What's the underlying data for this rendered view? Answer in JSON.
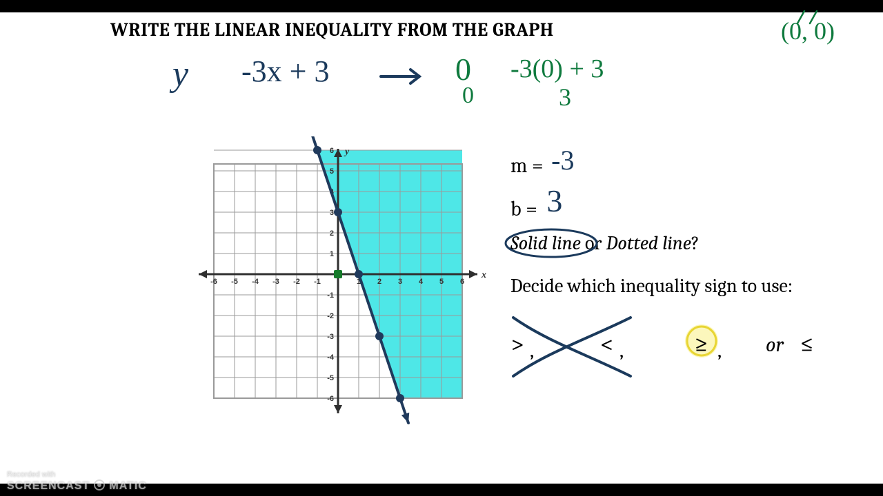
{
  "title": "WRITE THE LINEAR INEQUALITY FROM THE GRAPH",
  "test_point": "(0, 0)",
  "equation": {
    "lhs": "y",
    "rhs": "-3x + 3",
    "sub_x": "0",
    "sub_below": "0",
    "sub_result": "-3(0) + 3",
    "sub_result_below": "3"
  },
  "params": {
    "m_label": "m =",
    "m_value": "-3",
    "b_label": "b =",
    "b_value": "3"
  },
  "line_question": {
    "solid": "Solid line",
    "or": " or ",
    "dotted": "Dotted line",
    "q": "?"
  },
  "decide_text": "Decide which inequality sign to use:",
  "ineq_signs": {
    "gt": ">",
    "lt": "<",
    "ge": "≥",
    "le": "≤",
    "or": "or",
    "comma": ","
  },
  "chart": {
    "type": "inequality-graph",
    "xlim": [
      -6,
      6
    ],
    "ylim": [
      -6,
      6
    ],
    "tick_step": 1,
    "grid_color": "#9a9a9a",
    "axis_color": "#2f2f2f",
    "shade_color": "#2fe3e3",
    "line_color": "#203a5c",
    "point_color": "#203a5c",
    "origin_marker_color": "#157a2a",
    "line_points": [
      [
        -1,
        6
      ],
      [
        0,
        3
      ],
      [
        1,
        0
      ],
      [
        2,
        -3
      ],
      [
        3,
        -6
      ]
    ],
    "slope": -3,
    "intercept": 3,
    "shaded_side": "right",
    "x_labels": [
      "-6",
      "-5",
      "-4",
      "-3",
      "-2",
      "-1",
      "1",
      "2",
      "3",
      "4",
      "5",
      "6"
    ],
    "y_labels": [
      "6",
      "5",
      "4",
      "3",
      "2",
      "1",
      "-1",
      "-2",
      "-3",
      "-4",
      "-5",
      "-6"
    ],
    "axis_x_name": "x",
    "axis_y_name": "y"
  },
  "annotations": {
    "solid_circle_color": "#1b3a5c",
    "cross_out_color": "#1b3a5c",
    "ge_highlight_color": "#f5e94a"
  },
  "watermark": {
    "line1": "Recorded with",
    "line2a": "SCREENCAST",
    "line2b": "MATIC"
  }
}
